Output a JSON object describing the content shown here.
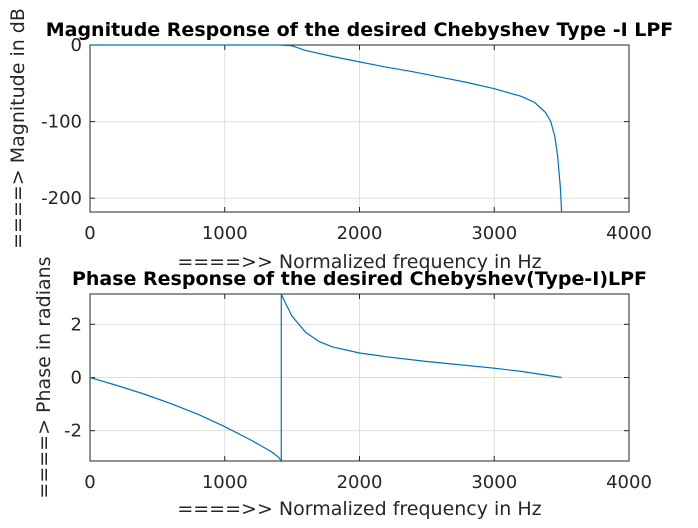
{
  "chart_data": [
    {
      "type": "line",
      "title": "Magnitude Response of the desired Chebyshev Type -I LPF",
      "xlabel": "====>> Normalized frequency in Hz",
      "ylabel": "====> Magnitude in dB",
      "xlim": [
        0,
        4000
      ],
      "ylim": [
        -218,
        0
      ],
      "xticks": [
        0,
        1000,
        2000,
        3000,
        4000
      ],
      "yticks": [
        0,
        -100,
        -200
      ],
      "xtick_labels": [
        "0",
        "1000",
        "2000",
        "3000",
        "4000"
      ],
      "ytick_labels": [
        "0",
        "-100",
        "-200"
      ],
      "grid": true,
      "color": "#0072bd",
      "x": [
        0,
        500,
        1000,
        1400,
        1500,
        1600,
        1800,
        2000,
        2200,
        2400,
        2600,
        2800,
        3000,
        3200,
        3300,
        3380,
        3420,
        3450,
        3470,
        3490,
        3500
      ],
      "y": [
        0,
        0,
        0,
        0,
        -1,
        -7,
        -15,
        -22,
        -29,
        -35,
        -42,
        -49,
        -57,
        -67,
        -75,
        -88,
        -100,
        -120,
        -145,
        -185,
        -218
      ]
    },
    {
      "type": "line",
      "title": "Phase Response of the desired Chebyshev(Type-I)LPF",
      "xlabel": "====>>  Normalized frequency in Hz",
      "ylabel": "====>  Phase in radians",
      "xlim": [
        0,
        4000
      ],
      "ylim": [
        -3.14,
        3.14
      ],
      "xticks": [
        0,
        1000,
        2000,
        3000,
        4000
      ],
      "yticks": [
        2,
        0,
        -2
      ],
      "xtick_labels": [
        "0",
        "1000",
        "2000",
        "3000",
        "4000"
      ],
      "ytick_labels": [
        "2",
        "0",
        "-2"
      ],
      "grid": true,
      "color": "#0072bd",
      "x": [
        0,
        200,
        400,
        600,
        800,
        1000,
        1200,
        1350,
        1400,
        1420,
        1420,
        1450,
        1500,
        1600,
        1700,
        1800,
        2000,
        2200,
        2500,
        2800,
        3000,
        3200,
        3500
      ],
      "y": [
        0,
        -0.3,
        -0.62,
        -0.98,
        -1.38,
        -1.85,
        -2.37,
        -2.8,
        -3.0,
        -3.14,
        3.14,
        2.8,
        2.3,
        1.7,
        1.35,
        1.15,
        0.92,
        0.78,
        0.6,
        0.45,
        0.35,
        0.23,
        0.0
      ]
    }
  ]
}
